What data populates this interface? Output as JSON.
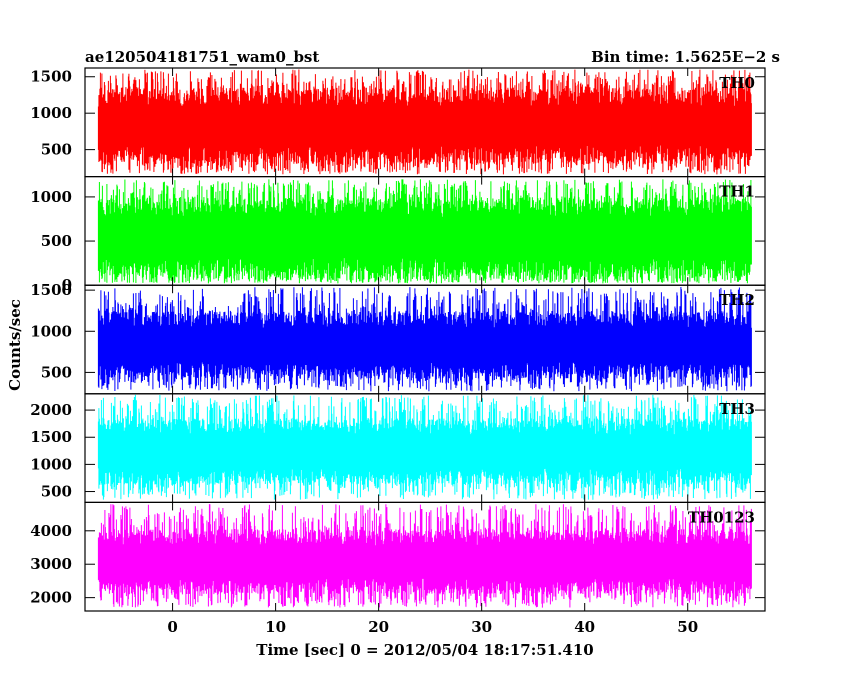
{
  "chart_data": {
    "type": "line",
    "title_left": "ae120504181751_wam0_bst",
    "title_right": "Bin time: 1.5625E−2 s",
    "xlabel": "Time [sec] 0 = 2012/05/04 18:17:51.410",
    "ylabel": "Counts/sec",
    "xlim": [
      -8.5,
      57.5
    ],
    "data_xrange": [
      -7.2,
      56.2
    ],
    "x_ticks": [
      0,
      10,
      20,
      30,
      40,
      50
    ],
    "x_tick_labels": [
      "0",
      "10",
      "20",
      "30",
      "40",
      "50"
    ],
    "grid": false,
    "legend": "none",
    "series": [
      {
        "name": "TH0",
        "color": "#ff0000",
        "ylim": [
          130,
          1620
        ],
        "yticks": [
          500,
          1000,
          1500
        ],
        "ytick_labels": [
          "500",
          "1000",
          "1500"
        ],
        "band_low": 300,
        "band_high": 1350,
        "spike_low": 160,
        "spike_high": 1600
      },
      {
        "name": "TH1",
        "color": "#00ff00",
        "ylim": [
          0,
          1230
        ],
        "yticks": [
          0,
          500,
          1000
        ],
        "ytick_labels": [
          "0",
          "500",
          "1000"
        ],
        "band_low": 80,
        "band_high": 1000,
        "spike_low": 20,
        "spike_high": 1200
      },
      {
        "name": "TH2",
        "color": "#0000ff",
        "ylim": [
          240,
          1560
        ],
        "yticks": [
          500,
          1000,
          1500
        ],
        "ytick_labels": [
          "500",
          "1000",
          "1500"
        ],
        "band_low": 420,
        "band_high": 1250,
        "spike_low": 270,
        "spike_high": 1540
      },
      {
        "name": "TH3",
        "color": "#00ffff",
        "ylim": [
          300,
          2300
        ],
        "yticks": [
          500,
          1000,
          1500,
          2000
        ],
        "ytick_labels": [
          "500",
          "1000",
          "1500",
          "2000"
        ],
        "band_low": 620,
        "band_high": 1850,
        "spike_low": 350,
        "spike_high": 2280
      },
      {
        "name": "TH0123",
        "color": "#ff00ff",
        "ylim": [
          1600,
          4850
        ],
        "yticks": [
          2000,
          3000,
          4000
        ],
        "ytick_labels": [
          "2000",
          "3000",
          "4000"
        ],
        "band_low": 2100,
        "band_high": 4050,
        "spike_low": 1700,
        "spike_high": 4800
      }
    ]
  }
}
